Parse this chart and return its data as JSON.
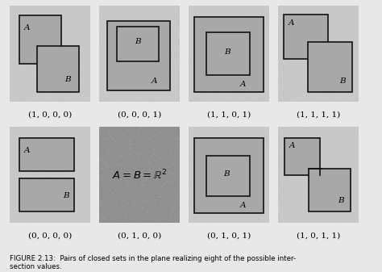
{
  "bg_color": "#c8c8c8",
  "box_fill": "#a8a8a8",
  "box_edge": "#111111",
  "dark_bg": "#909090",
  "fig_bg": "#e8e8e8",
  "labels": [
    "(1, 0, 0, 0)",
    "(0, 0, 0, 1)",
    "(1, 1, 0, 1)",
    "(1, 1, 1, 1)",
    "(0, 0, 0, 0)",
    "(0, 1, 0, 0)",
    "(0, 1, 0, 1)",
    "(1, 0, 1, 1)"
  ],
  "caption_line1": "FIGURE 2.13:  Pairs of closed sets in the plane realizing eight of the possible inter-",
  "caption_line2": "section values.",
  "label_fontsize": 7.5
}
